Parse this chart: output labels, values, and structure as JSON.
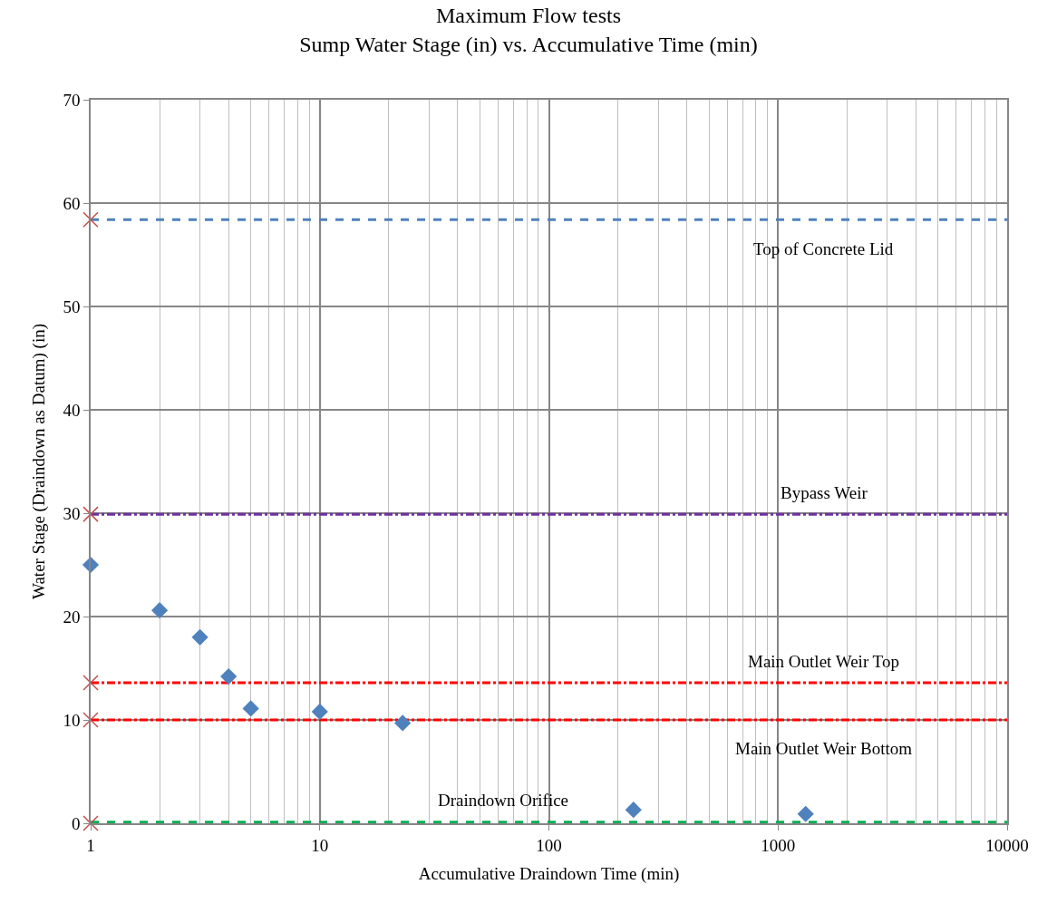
{
  "chart_data": {
    "type": "scatter",
    "title": "Maximum Flow tests\nSump Water Stage (in) vs. Accumulative Time (min)",
    "xlabel": "Accumulative Draindown Time (min)",
    "ylabel": "Water Stage (Draindown as Datum) (in)",
    "log": "x",
    "xlim": [
      1,
      10000
    ],
    "xticks": [
      1,
      10,
      100,
      1000,
      10000
    ],
    "ylim": [
      0,
      70
    ],
    "yticks": [
      0,
      10,
      20,
      30,
      40,
      50,
      60,
      70
    ],
    "grid": true,
    "series": [
      {
        "color": "#4f81bd",
        "marker": "diamond",
        "x": [
          1,
          2,
          3,
          4,
          5,
          10,
          23,
          234,
          1320
        ],
        "values": [
          25,
          20.6,
          18,
          14.2,
          11.1,
          10.8,
          9.7,
          1.3,
          0.9
        ]
      },
      {
        "color": "#c0504d",
        "marker": "cross",
        "x": [
          1,
          1,
          1,
          1,
          1
        ],
        "values": [
          58.4,
          29.9,
          13.6,
          10,
          0
        ]
      }
    ],
    "ref_lines": [
      {
        "axis": "y",
        "value": 58.4,
        "color": "#4f81bd",
        "line_style": "dashed",
        "label": "Top of Concrete Lid"
      },
      {
        "axis": "y",
        "value": 29.9,
        "color": "#7030a0",
        "line_style": "dashdot",
        "label": "Bypass Weir"
      },
      {
        "axis": "y",
        "value": 13.6,
        "color": "#ff0000",
        "line_style": "dashdot",
        "label": "Main Outlet Weir Top"
      },
      {
        "axis": "y",
        "value": 10,
        "color": "#ff0000",
        "line_style": "dashdot",
        "label": "Main Outlet Weir Bottom"
      },
      {
        "axis": "y",
        "value": 0.1,
        "color": "#00b050",
        "line_style": "dashed",
        "label": "Draindown Orifice"
      }
    ]
  }
}
